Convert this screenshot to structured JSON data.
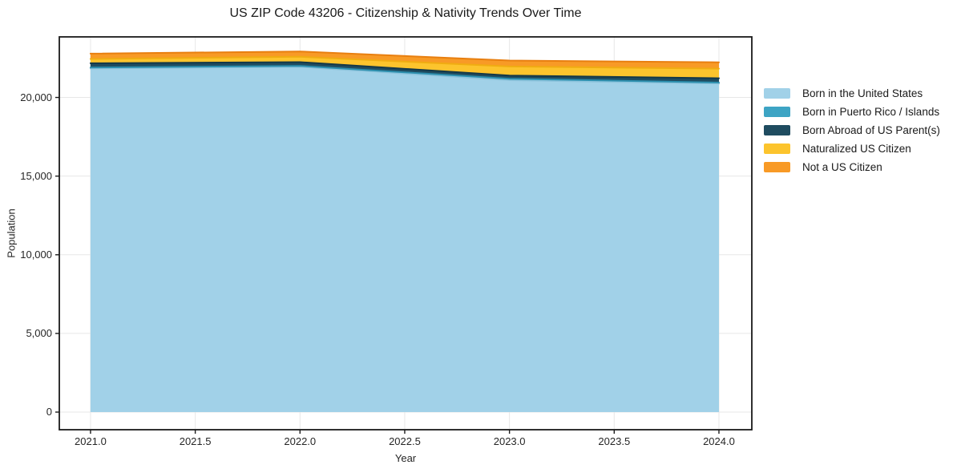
{
  "title": "US ZIP Code 43206 - Citizenship & Nativity Trends Over Time",
  "chart_data": {
    "type": "area",
    "stacked": true,
    "title": "US ZIP Code 43206 - Citizenship & Nativity Trends Over Time",
    "xlabel": "Year",
    "ylabel": "Population",
    "grid": true,
    "legend_position": "right",
    "x": [
      2021,
      2022,
      2023,
      2024
    ],
    "series": [
      {
        "name": "Born in the United States",
        "color": "#a1d1e8",
        "edge": "#8cc3dc",
        "values": [
          21840,
          21940,
          21100,
          20880
        ]
      },
      {
        "name": "Born in Puerto Rico / Islands",
        "color": "#3da4c4",
        "edge": "#2c8fae",
        "values": [
          65,
          65,
          90,
          65
        ]
      },
      {
        "name": "Born Abroad of US Parent(s)",
        "color": "#1f4c60",
        "edge": "#143848",
        "values": [
          270,
          240,
          205,
          275
        ]
      },
      {
        "name": "Naturalized US Citizen",
        "color": "#fcc42d",
        "edge": "#f0ac12",
        "values": [
          275,
          340,
          575,
          610
        ]
      },
      {
        "name": "Not a US Citizen",
        "color": "#f89a26",
        "edge": "#e87f10",
        "values": [
          335,
          340,
          375,
          405
        ]
      }
    ],
    "xticks": {
      "values": [
        2021.0,
        2021.5,
        2022.0,
        2022.5,
        2023.0,
        2023.5,
        2024.0
      ],
      "labels": [
        "2021.0",
        "2021.5",
        "2022.0",
        "2022.5",
        "2023.0",
        "2023.5",
        "2024.0"
      ]
    },
    "yticks": {
      "values": [
        0,
        5000,
        10000,
        15000,
        20000
      ],
      "labels": [
        "0",
        "5,000",
        "10,000",
        "15,000",
        "20,000"
      ]
    },
    "xlim": [
      2020.851,
      2024.157
    ],
    "ylim": [
      -1120,
      23850
    ]
  },
  "colors": {
    "grid": "#e7e7e7",
    "spine": "#1a1a1a",
    "text": "#262626"
  }
}
